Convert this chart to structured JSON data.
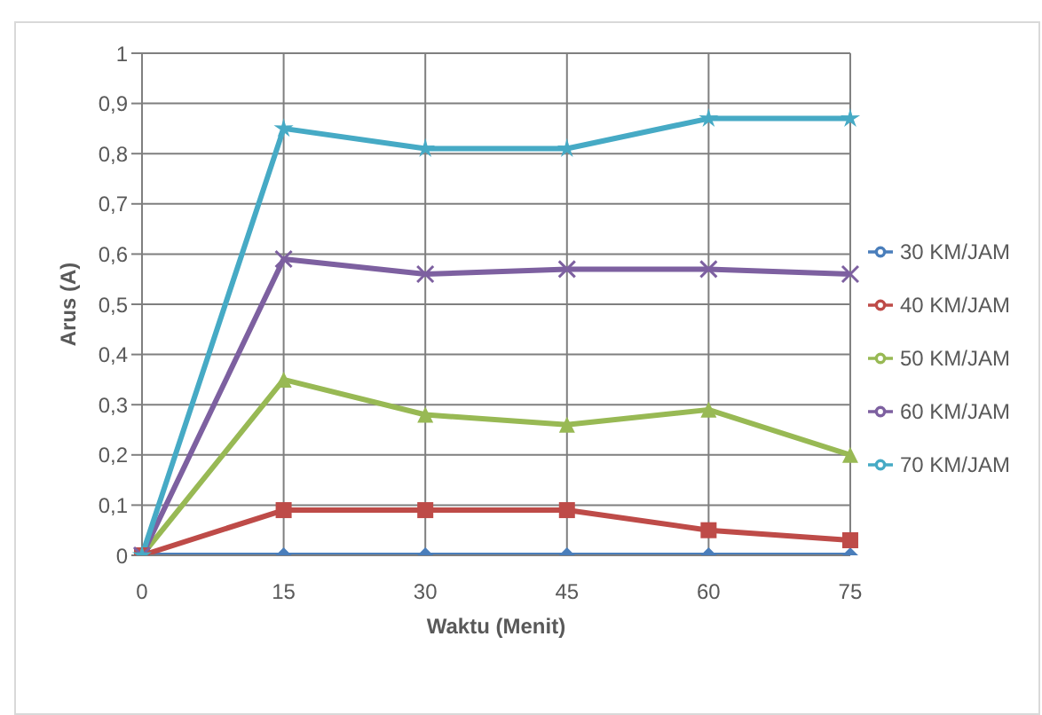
{
  "chart_data": {
    "type": "line",
    "xlabel": "Waktu (Menit)",
    "ylabel": "Arus (A)",
    "categories": [
      "0",
      "15",
      "30",
      "45",
      "60",
      "75"
    ],
    "ylim": [
      0,
      1
    ],
    "yticks": [
      0,
      {
        "value": 0.1,
        "label": "0,1"
      },
      {
        "value": 0.2,
        "label": "0,2"
      },
      {
        "value": 0.3,
        "label": "0,3"
      },
      {
        "value": 0.4,
        "label": "0,4"
      },
      {
        "value": 0.5,
        "label": "0,5"
      },
      {
        "value": 0.6,
        "label": "0,6"
      },
      {
        "value": 0.7,
        "label": "0,7"
      },
      {
        "value": 0.8,
        "label": "0,8"
      },
      {
        "value": 0.9,
        "label": "0,9"
      },
      1
    ],
    "grid": true,
    "legend": "right",
    "line_style": "solid",
    "series": [
      {
        "name": "30 KM/JAM",
        "color": "#4a7ebb",
        "marker": "diamond",
        "values": [
          0,
          0,
          0,
          0,
          0,
          0
        ]
      },
      {
        "name": "40 KM/JAM",
        "color": "#be4b48",
        "marker": "square",
        "values": [
          0,
          0.09,
          0.09,
          0.09,
          0.05,
          0.03
        ]
      },
      {
        "name": "50 KM/JAM",
        "color": "#98b954",
        "marker": "triangle",
        "values": [
          0,
          0.35,
          0.28,
          0.26,
          0.29,
          0.2
        ]
      },
      {
        "name": "60 KM/JAM",
        "color": "#7d60a0",
        "marker": "cross",
        "values": [
          0,
          0.59,
          0.56,
          0.57,
          0.57,
          0.56
        ]
      },
      {
        "name": "70 KM/JAM",
        "color": "#46aac5",
        "marker": "star",
        "values": [
          0,
          0.85,
          0.81,
          0.81,
          0.87,
          0.87
        ]
      }
    ]
  }
}
